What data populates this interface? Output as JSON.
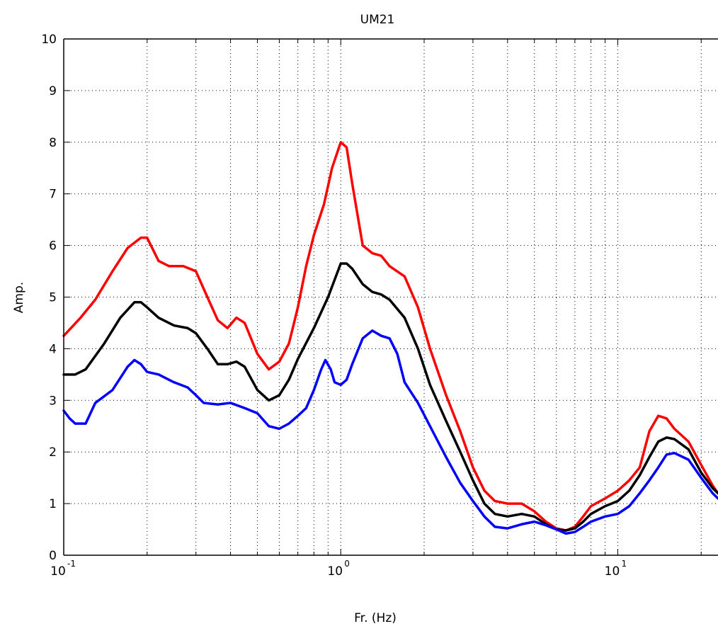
{
  "chart_data": {
    "type": "line",
    "title": "UM21",
    "xlabel": "Fr. (Hz)",
    "ylabel": "Amp.",
    "xscale": "log",
    "xlim": [
      0.1,
      23
    ],
    "ylim": [
      0,
      10
    ],
    "grid": true,
    "x_ticks": [
      {
        "value": 0.1,
        "base": "10",
        "exp": "-1"
      },
      {
        "value": 1,
        "base": "10",
        "exp": "0"
      },
      {
        "value": 10,
        "base": "10",
        "exp": "1"
      }
    ],
    "y_ticks": [
      "0",
      "1",
      "2",
      "3",
      "4",
      "5",
      "6",
      "7",
      "8",
      "9",
      "10"
    ],
    "colors": {
      "upper": "#ff0000",
      "mean": "#000000",
      "lower": "#0000ff"
    },
    "series": [
      {
        "color": "#ff0000",
        "points": [
          [
            0.1,
            4.25
          ],
          [
            0.115,
            4.6
          ],
          [
            0.13,
            4.95
          ],
          [
            0.15,
            5.5
          ],
          [
            0.17,
            5.95
          ],
          [
            0.19,
            6.15
          ],
          [
            0.2,
            6.15
          ],
          [
            0.22,
            5.7
          ],
          [
            0.24,
            5.6
          ],
          [
            0.27,
            5.6
          ],
          [
            0.3,
            5.5
          ],
          [
            0.33,
            5.0
          ],
          [
            0.36,
            4.55
          ],
          [
            0.39,
            4.4
          ],
          [
            0.42,
            4.6
          ],
          [
            0.45,
            4.5
          ],
          [
            0.5,
            3.9
          ],
          [
            0.55,
            3.6
          ],
          [
            0.6,
            3.75
          ],
          [
            0.65,
            4.1
          ],
          [
            0.7,
            4.8
          ],
          [
            0.75,
            5.6
          ],
          [
            0.8,
            6.2
          ],
          [
            0.87,
            6.8
          ],
          [
            0.93,
            7.5
          ],
          [
            1.0,
            8.0
          ],
          [
            1.05,
            7.9
          ],
          [
            1.1,
            7.2
          ],
          [
            1.2,
            6.0
          ],
          [
            1.3,
            5.85
          ],
          [
            1.4,
            5.8
          ],
          [
            1.5,
            5.6
          ],
          [
            1.7,
            5.4
          ],
          [
            1.9,
            4.8
          ],
          [
            2.1,
            4.0
          ],
          [
            2.4,
            3.1
          ],
          [
            2.7,
            2.4
          ],
          [
            3.0,
            1.7
          ],
          [
            3.3,
            1.25
          ],
          [
            3.6,
            1.05
          ],
          [
            4.0,
            1.0
          ],
          [
            4.5,
            1.0
          ],
          [
            5.0,
            0.85
          ],
          [
            5.5,
            0.65
          ],
          [
            6.0,
            0.52
          ],
          [
            6.5,
            0.48
          ],
          [
            7.0,
            0.55
          ],
          [
            7.5,
            0.75
          ],
          [
            8.0,
            0.95
          ],
          [
            9.0,
            1.1
          ],
          [
            10.0,
            1.25
          ],
          [
            11.0,
            1.45
          ],
          [
            12.0,
            1.7
          ],
          [
            13.0,
            2.4
          ],
          [
            14.0,
            2.7
          ],
          [
            15.0,
            2.65
          ],
          [
            16.0,
            2.45
          ],
          [
            18.0,
            2.2
          ],
          [
            20.0,
            1.75
          ],
          [
            22.0,
            1.35
          ],
          [
            23.0,
            1.2
          ]
        ]
      },
      {
        "color": "#000000",
        "points": [
          [
            0.1,
            3.5
          ],
          [
            0.11,
            3.5
          ],
          [
            0.12,
            3.6
          ],
          [
            0.14,
            4.1
          ],
          [
            0.16,
            4.6
          ],
          [
            0.18,
            4.9
          ],
          [
            0.19,
            4.9
          ],
          [
            0.2,
            4.8
          ],
          [
            0.22,
            4.6
          ],
          [
            0.25,
            4.45
          ],
          [
            0.28,
            4.4
          ],
          [
            0.3,
            4.3
          ],
          [
            0.33,
            4.0
          ],
          [
            0.36,
            3.7
          ],
          [
            0.39,
            3.7
          ],
          [
            0.42,
            3.75
          ],
          [
            0.45,
            3.65
          ],
          [
            0.5,
            3.2
          ],
          [
            0.55,
            3.0
          ],
          [
            0.6,
            3.1
          ],
          [
            0.65,
            3.4
          ],
          [
            0.7,
            3.8
          ],
          [
            0.8,
            4.4
          ],
          [
            0.9,
            5.0
          ],
          [
            1.0,
            5.65
          ],
          [
            1.05,
            5.65
          ],
          [
            1.1,
            5.55
          ],
          [
            1.2,
            5.25
          ],
          [
            1.3,
            5.1
          ],
          [
            1.4,
            5.05
          ],
          [
            1.5,
            4.95
          ],
          [
            1.7,
            4.6
          ],
          [
            1.9,
            4.0
          ],
          [
            2.1,
            3.3
          ],
          [
            2.4,
            2.6
          ],
          [
            2.7,
            2.0
          ],
          [
            3.0,
            1.45
          ],
          [
            3.3,
            1.0
          ],
          [
            3.6,
            0.8
          ],
          [
            4.0,
            0.75
          ],
          [
            4.5,
            0.8
          ],
          [
            5.0,
            0.75
          ],
          [
            5.5,
            0.6
          ],
          [
            6.0,
            0.5
          ],
          [
            6.5,
            0.48
          ],
          [
            7.0,
            0.52
          ],
          [
            7.5,
            0.65
          ],
          [
            8.0,
            0.8
          ],
          [
            9.0,
            0.95
          ],
          [
            10.0,
            1.05
          ],
          [
            11.0,
            1.25
          ],
          [
            12.0,
            1.55
          ],
          [
            13.0,
            1.9
          ],
          [
            14.0,
            2.2
          ],
          [
            15.0,
            2.28
          ],
          [
            16.0,
            2.25
          ],
          [
            18.0,
            2.05
          ],
          [
            20.0,
            1.6
          ],
          [
            22.0,
            1.3
          ],
          [
            23.0,
            1.2
          ]
        ]
      },
      {
        "color": "#0000ff",
        "points": [
          [
            0.1,
            2.8
          ],
          [
            0.105,
            2.65
          ],
          [
            0.11,
            2.55
          ],
          [
            0.12,
            2.55
          ],
          [
            0.13,
            2.95
          ],
          [
            0.15,
            3.2
          ],
          [
            0.17,
            3.65
          ],
          [
            0.18,
            3.78
          ],
          [
            0.19,
            3.7
          ],
          [
            0.2,
            3.55
          ],
          [
            0.22,
            3.5
          ],
          [
            0.25,
            3.35
          ],
          [
            0.28,
            3.25
          ],
          [
            0.3,
            3.1
          ],
          [
            0.32,
            2.95
          ],
          [
            0.36,
            2.92
          ],
          [
            0.4,
            2.95
          ],
          [
            0.45,
            2.85
          ],
          [
            0.5,
            2.75
          ],
          [
            0.55,
            2.5
          ],
          [
            0.6,
            2.45
          ],
          [
            0.65,
            2.55
          ],
          [
            0.7,
            2.7
          ],
          [
            0.75,
            2.85
          ],
          [
            0.8,
            3.2
          ],
          [
            0.85,
            3.6
          ],
          [
            0.88,
            3.78
          ],
          [
            0.92,
            3.6
          ],
          [
            0.95,
            3.35
          ],
          [
            1.0,
            3.3
          ],
          [
            1.05,
            3.4
          ],
          [
            1.1,
            3.7
          ],
          [
            1.2,
            4.2
          ],
          [
            1.3,
            4.35
          ],
          [
            1.4,
            4.25
          ],
          [
            1.5,
            4.2
          ],
          [
            1.6,
            3.9
          ],
          [
            1.7,
            3.35
          ],
          [
            1.9,
            2.95
          ],
          [
            2.1,
            2.5
          ],
          [
            2.4,
            1.9
          ],
          [
            2.7,
            1.4
          ],
          [
            3.0,
            1.05
          ],
          [
            3.3,
            0.75
          ],
          [
            3.6,
            0.55
          ],
          [
            4.0,
            0.52
          ],
          [
            4.5,
            0.6
          ],
          [
            5.0,
            0.65
          ],
          [
            5.5,
            0.58
          ],
          [
            6.0,
            0.5
          ],
          [
            6.5,
            0.42
          ],
          [
            7.0,
            0.45
          ],
          [
            7.5,
            0.55
          ],
          [
            8.0,
            0.65
          ],
          [
            9.0,
            0.75
          ],
          [
            10.0,
            0.8
          ],
          [
            11.0,
            0.95
          ],
          [
            12.0,
            1.2
          ],
          [
            13.0,
            1.45
          ],
          [
            14.0,
            1.7
          ],
          [
            15.0,
            1.95
          ],
          [
            16.0,
            1.98
          ],
          [
            18.0,
            1.85
          ],
          [
            20.0,
            1.5
          ],
          [
            22.0,
            1.2
          ],
          [
            23.0,
            1.1
          ]
        ]
      }
    ]
  }
}
